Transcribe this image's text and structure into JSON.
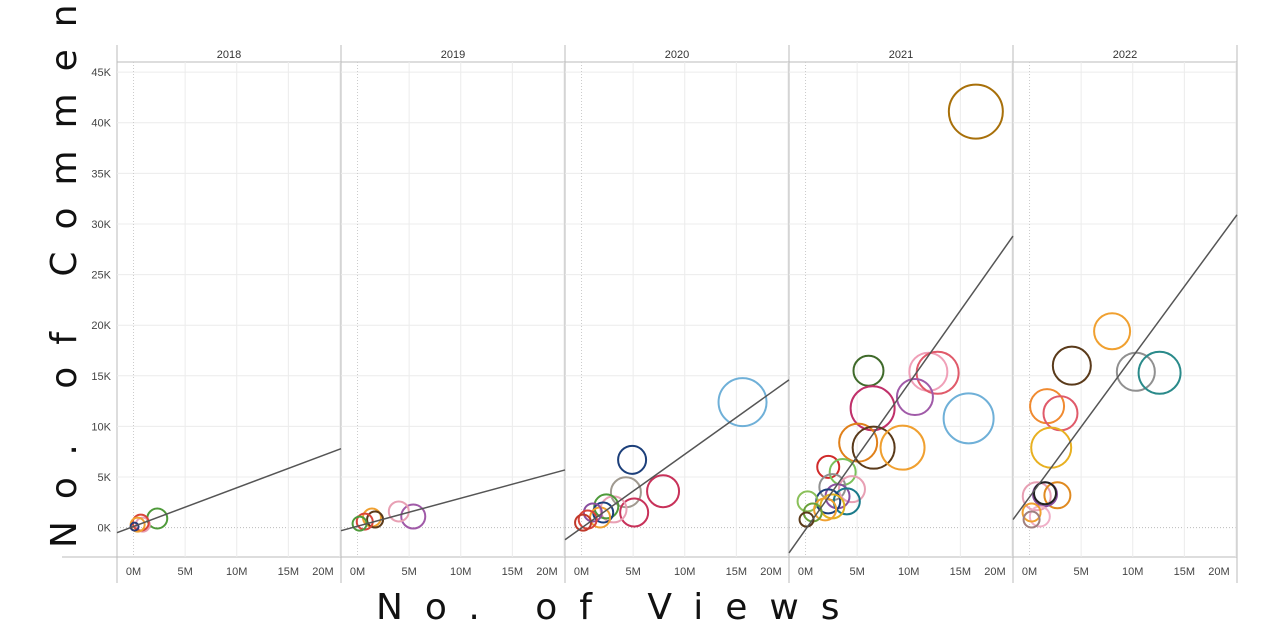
{
  "chart_data": {
    "type": "scatter",
    "xlabel": "No. of Views",
    "ylabel": "No. of Comments",
    "xlim": [
      -1.6,
      20.1
    ],
    "ylim": [
      -2.9,
      46
    ],
    "x_ticks": [
      0,
      5,
      10,
      15,
      20
    ],
    "x_tick_labels": [
      "0M",
      "5M",
      "10M",
      "15M",
      "20M"
    ],
    "y_ticks": [
      0,
      5,
      10,
      15,
      20,
      25,
      30,
      35,
      40,
      45
    ],
    "y_tick_labels": [
      "0K",
      "5K",
      "10K",
      "15K",
      "20K",
      "25K",
      "30K",
      "35K",
      "40K",
      "45K"
    ],
    "grid": true,
    "panels": [
      {
        "title": "2018",
        "trend": [
          [
            -1.6,
            -0.5
          ],
          [
            20.1,
            7.8
          ]
        ],
        "points": [
          {
            "x": 2.3,
            "y": 0.9,
            "size": 10,
            "color": "#4e9a3a"
          },
          {
            "x": 0.9,
            "y": 0.3,
            "size": 7,
            "color": "#e8a0b4"
          },
          {
            "x": 0.7,
            "y": 0.5,
            "size": 8,
            "color": "#d9453a"
          },
          {
            "x": 0.4,
            "y": 0.3,
            "size": 7,
            "color": "#f0a030"
          },
          {
            "x": 0.1,
            "y": 0.1,
            "size": 4,
            "color": "#2a3b7a"
          }
        ]
      },
      {
        "title": "2019",
        "trend": [
          [
            -1.6,
            -0.3
          ],
          [
            20.1,
            5.7
          ]
        ],
        "points": [
          {
            "x": 5.4,
            "y": 1.1,
            "size": 12,
            "color": "#a05aa8"
          },
          {
            "x": 4.0,
            "y": 1.6,
            "size": 10,
            "color": "#e8a0b4"
          },
          {
            "x": 1.4,
            "y": 1.0,
            "size": 9,
            "color": "#f0a030"
          },
          {
            "x": 1.7,
            "y": 0.8,
            "size": 8,
            "color": "#5a3a1a"
          },
          {
            "x": 0.7,
            "y": 0.6,
            "size": 8,
            "color": "#d9453a"
          },
          {
            "x": 0.2,
            "y": 0.4,
            "size": 7,
            "color": "#4e9a3a"
          }
        ]
      },
      {
        "title": "2020",
        "trend": [
          [
            -1.6,
            -1.2
          ],
          [
            20.1,
            14.6
          ]
        ],
        "points": [
          {
            "x": 15.6,
            "y": 12.4,
            "size": 24,
            "color": "#6fb0d8"
          },
          {
            "x": 4.9,
            "y": 6.7,
            "size": 14,
            "color": "#1c3f7a"
          },
          {
            "x": 4.3,
            "y": 3.5,
            "size": 15,
            "color": "#a09a90"
          },
          {
            "x": 7.9,
            "y": 3.6,
            "size": 16,
            "color": "#c8325a"
          },
          {
            "x": 5.1,
            "y": 1.5,
            "size": 14,
            "color": "#c8325a"
          },
          {
            "x": 3.1,
            "y": 1.8,
            "size": 13,
            "color": "#e8a0b4"
          },
          {
            "x": 2.4,
            "y": 2.1,
            "size": 12,
            "color": "#4e9a3a"
          },
          {
            "x": 2.1,
            "y": 1.5,
            "size": 10,
            "color": "#1c3f7a"
          },
          {
            "x": 1.8,
            "y": 1.0,
            "size": 10,
            "color": "#f0a030"
          },
          {
            "x": 1.1,
            "y": 1.5,
            "size": 9,
            "color": "#8a4fa0"
          },
          {
            "x": 0.6,
            "y": 0.8,
            "size": 9,
            "color": "#d9453a"
          },
          {
            "x": 0.15,
            "y": 0.5,
            "size": 8,
            "color": "#c0392b"
          }
        ]
      },
      {
        "title": "2021",
        "trend": [
          [
            -1.6,
            -2.5
          ],
          [
            20.1,
            28.8
          ]
        ],
        "points": [
          {
            "x": 16.5,
            "y": 41.1,
            "size": 27,
            "color": "#a8700a"
          },
          {
            "x": 6.1,
            "y": 15.5,
            "size": 15,
            "color": "#3f6a2a"
          },
          {
            "x": 11.9,
            "y": 15.4,
            "size": 19,
            "color": "#f0a0b8"
          },
          {
            "x": 12.8,
            "y": 15.3,
            "size": 21,
            "color": "#e05a6a"
          },
          {
            "x": 10.6,
            "y": 12.9,
            "size": 18,
            "color": "#a05aa8"
          },
          {
            "x": 6.5,
            "y": 11.8,
            "size": 22,
            "color": "#c0306a"
          },
          {
            "x": 15.8,
            "y": 10.8,
            "size": 25,
            "color": "#6fb0d8"
          },
          {
            "x": 5.1,
            "y": 8.4,
            "size": 19,
            "color": "#e0801a"
          },
          {
            "x": 6.6,
            "y": 7.9,
            "size": 21,
            "color": "#5a3a1a"
          },
          {
            "x": 9.4,
            "y": 7.9,
            "size": 22,
            "color": "#f0a030"
          },
          {
            "x": 2.2,
            "y": 6.0,
            "size": 11,
            "color": "#d02a2a"
          },
          {
            "x": 3.6,
            "y": 5.5,
            "size": 13,
            "color": "#7ac05a"
          },
          {
            "x": 2.6,
            "y": 4.0,
            "size": 13,
            "color": "#909090"
          },
          {
            "x": 4.5,
            "y": 3.8,
            "size": 13,
            "color": "#e8a0b4"
          },
          {
            "x": 3.1,
            "y": 3.1,
            "size": 12,
            "color": "#8a4fa0"
          },
          {
            "x": 4.0,
            "y": 2.6,
            "size": 13,
            "color": "#1a7a8a"
          },
          {
            "x": 2.2,
            "y": 2.6,
            "size": 12,
            "color": "#1c3f7a"
          },
          {
            "x": 0.2,
            "y": 2.6,
            "size": 10,
            "color": "#8ac05a"
          },
          {
            "x": 2.6,
            "y": 2.1,
            "size": 12,
            "color": "#e0b020"
          },
          {
            "x": 1.9,
            "y": 1.8,
            "size": 11,
            "color": "#f0a030"
          },
          {
            "x": 0.7,
            "y": 1.5,
            "size": 9,
            "color": "#6aa03a"
          },
          {
            "x": 0.1,
            "y": 0.8,
            "size": 7,
            "color": "#5a3a1a"
          }
        ]
      },
      {
        "title": "2022",
        "trend": [
          [
            -1.6,
            0.8
          ],
          [
            20.1,
            30.9
          ]
        ],
        "points": [
          {
            "x": 8.0,
            "y": 19.4,
            "size": 18,
            "color": "#f0a030"
          },
          {
            "x": 4.1,
            "y": 16.0,
            "size": 19,
            "color": "#5a3a1a"
          },
          {
            "x": 10.3,
            "y": 15.4,
            "size": 19,
            "color": "#909090"
          },
          {
            "x": 12.6,
            "y": 15.3,
            "size": 21,
            "color": "#2a8a8a"
          },
          {
            "x": 1.7,
            "y": 12.0,
            "size": 17,
            "color": "#f08a30"
          },
          {
            "x": 3.0,
            "y": 11.3,
            "size": 17,
            "color": "#e05a6a"
          },
          {
            "x": 2.1,
            "y": 7.9,
            "size": 20,
            "color": "#e8b020"
          },
          {
            "x": 0.7,
            "y": 3.1,
            "size": 14,
            "color": "#e8a0b4"
          },
          {
            "x": 2.7,
            "y": 3.2,
            "size": 13,
            "color": "#e08a20"
          },
          {
            "x": 1.5,
            "y": 3.3,
            "size": 12,
            "color": "#8a4fa0"
          },
          {
            "x": 1.5,
            "y": 3.4,
            "size": 11,
            "color": "#222222"
          },
          {
            "x": 1.0,
            "y": 1.1,
            "size": 10,
            "color": "#f0b0c8"
          },
          {
            "x": 0.2,
            "y": 1.5,
            "size": 9,
            "color": "#f0a030"
          },
          {
            "x": 0.2,
            "y": 0.8,
            "size": 8,
            "color": "#a08080"
          }
        ]
      }
    ]
  }
}
